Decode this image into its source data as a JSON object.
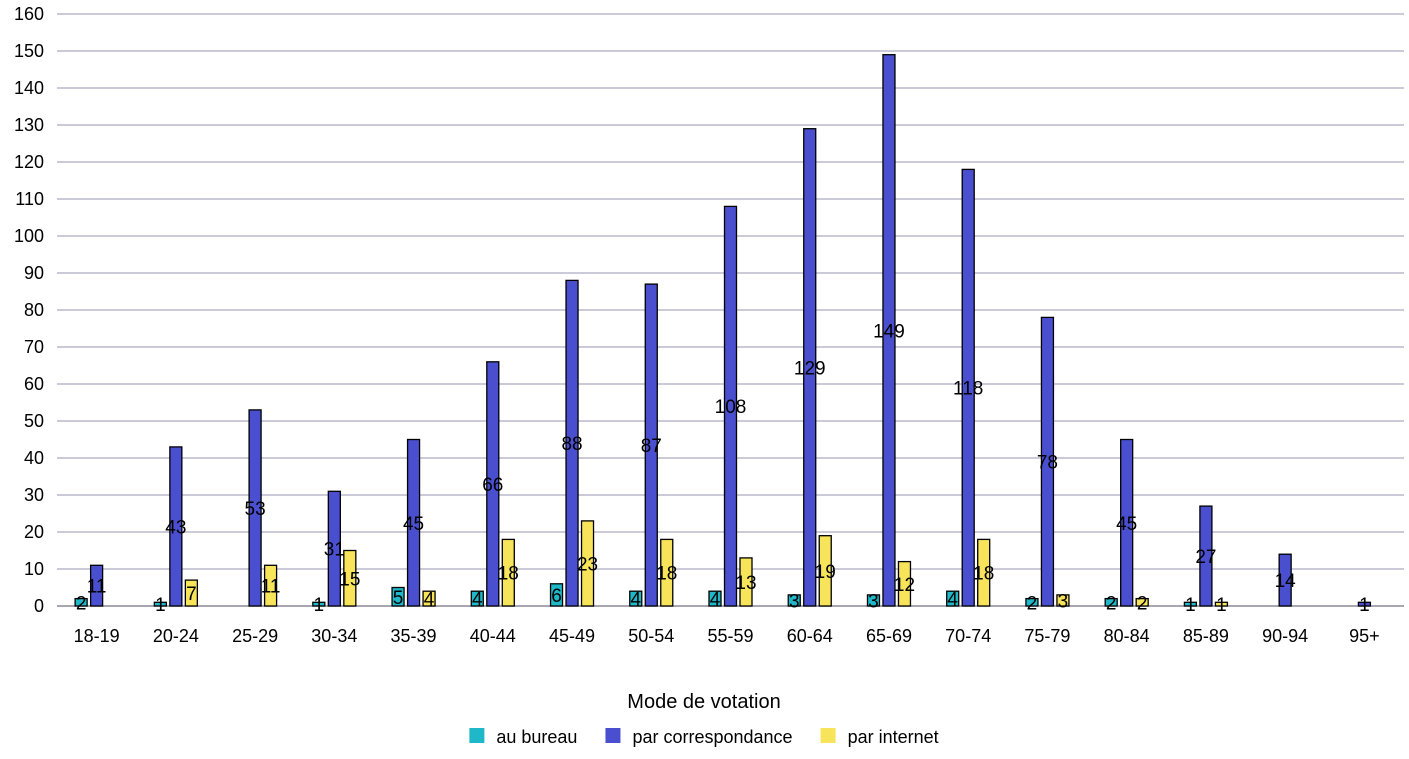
{
  "chart_data": {
    "type": "bar",
    "title": "",
    "xlabel": "",
    "ylabel": "",
    "ylim": [
      0,
      160
    ],
    "yticks": [
      0,
      10,
      20,
      30,
      40,
      50,
      60,
      70,
      80,
      90,
      100,
      110,
      120,
      130,
      140,
      150,
      160
    ],
    "grid": true,
    "categories": [
      "18-19",
      "20-24",
      "25-29",
      "30-34",
      "35-39",
      "40-44",
      "45-49",
      "50-54",
      "55-59",
      "60-64",
      "65-69",
      "70-74",
      "75-79",
      "80-84",
      "85-89",
      "90-94",
      "95+"
    ],
    "series": [
      {
        "name": "au bureau",
        "color": "#1fb8c8",
        "values": [
          2,
          1,
          null,
          1,
          5,
          4,
          6,
          4,
          4,
          3,
          3,
          4,
          2,
          2,
          1,
          null,
          null
        ]
      },
      {
        "name": "par correspondance",
        "color": "#4a4fd0",
        "values": [
          11,
          43,
          53,
          31,
          45,
          66,
          88,
          87,
          108,
          129,
          149,
          118,
          78,
          45,
          27,
          14,
          1
        ]
      },
      {
        "name": "par internet",
        "color": "#f8e45a",
        "values": [
          null,
          7,
          11,
          15,
          4,
          18,
          23,
          18,
          13,
          19,
          12,
          18,
          3,
          2,
          1,
          null,
          null
        ]
      }
    ],
    "legend": {
      "title": "Mode de votation",
      "position": "bottom-center"
    }
  }
}
